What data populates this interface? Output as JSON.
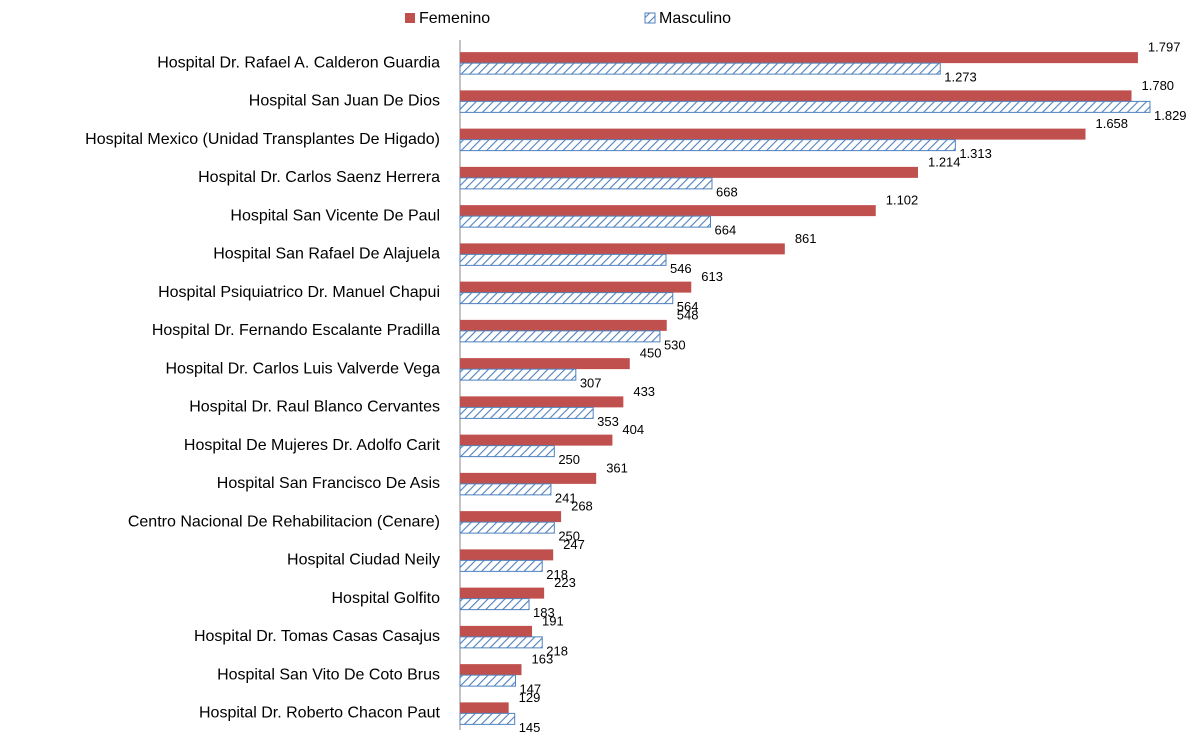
{
  "chart_data": {
    "type": "hbar",
    "categories": [
      "Hospital Dr. Rafael A. Calderon Guardia",
      "Hospital San Juan De Dios",
      "Hospital Mexico (Unidad Transplantes De Higado)",
      "Hospital Dr. Carlos Saenz Herrera",
      "Hospital San Vicente De Paul",
      "Hospital San Rafael De Alajuela",
      "Hospital Psiquiatrico Dr. Manuel Chapui",
      "Hospital Dr. Fernando Escalante Pradilla",
      "Hospital Dr. Carlos Luis Valverde Vega",
      "Hospital Dr. Raul Blanco Cervantes",
      "Hospital De Mujeres Dr. Adolfo Carit",
      "Hospital San Francisco De Asis",
      "Centro Nacional De Rehabilitacion (Cenare)",
      "Hospital Ciudad Neily",
      "Hospital Golfito",
      "Hospital Dr. Tomas Casas Casajus",
      "Hospital San Vito De Coto Brus",
      "Hospital Dr. Roberto Chacon Paut"
    ],
    "series": [
      {
        "name": "Femenino",
        "color": "#c0504d",
        "values": [
          1797,
          1780,
          1658,
          1214,
          1102,
          861,
          613,
          548,
          450,
          433,
          404,
          361,
          268,
          247,
          223,
          191,
          163,
          129
        ],
        "value_labels": [
          "1.797",
          "1.780",
          "1.658",
          "1.214",
          "1.102",
          "861",
          "613",
          "548",
          "450",
          "433",
          "404",
          "361",
          "268",
          "247",
          "223",
          "191",
          "163",
          "129"
        ]
      },
      {
        "name": "Masculino",
        "color": "#4f81bd",
        "hatch": true,
        "values": [
          1273,
          1829,
          1313,
          668,
          664,
          546,
          564,
          530,
          307,
          353,
          250,
          241,
          250,
          218,
          183,
          218,
          147,
          145
        ],
        "value_labels": [
          "1.273",
          "1.829",
          "1.313",
          "668",
          "664",
          "546",
          "564",
          "530",
          "307",
          "353",
          "250",
          "241",
          "250",
          "218",
          "183",
          "218",
          "147",
          "145"
        ]
      }
    ],
    "legend": "top"
  }
}
